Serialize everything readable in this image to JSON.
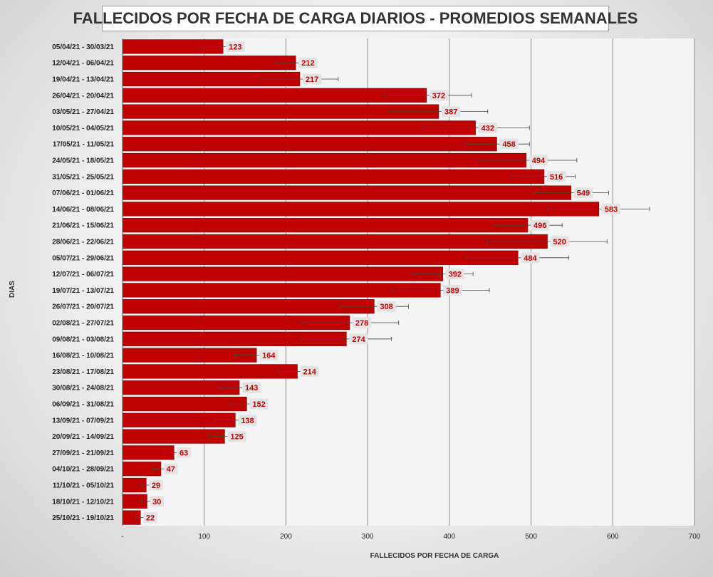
{
  "chart_data": {
    "type": "bar",
    "orientation": "horizontal",
    "title": "FALLECIDOS POR FECHA DE CARGA DIARIOS - PROMEDIOS SEMANALES",
    "xlabel": "FALLECIDOS POR FECHA DE CARGA",
    "ylabel": "DIAS",
    "xlim": [
      0,
      700
    ],
    "x_ticks": [
      "-",
      "100",
      "200",
      "300",
      "400",
      "500",
      "600",
      "700"
    ],
    "x_tick_values": [
      0,
      100,
      200,
      300,
      400,
      500,
      600,
      700
    ],
    "grid": "vertical",
    "colors": {
      "bar": "#c00000",
      "bar_edge": "#7a0000",
      "label_bg": "#e3e3e3",
      "plot_bg": "#f4f4f4",
      "grid": "#8c8c8c"
    },
    "categories": [
      "05/04/21 - 30/03/21",
      "12/04/21 - 06/04/21",
      "19/04/21 - 13/04/21",
      "26/04/21 - 20/04/21",
      "03/05/21 - 27/04/21",
      "10/05/21 - 04/05/21",
      "17/05/21 - 11/05/21",
      "24/05/21 - 18/05/21",
      "31/05/21 - 25/05/21",
      "07/06/21 - 01/06/21",
      "14/06/21 - 08/06/21",
      "21/06/21 - 15/06/21",
      "28/06/21 - 22/06/21",
      "05/07/21 - 29/06/21",
      "12/07/21 - 06/07/21",
      "19/07/21 - 13/07/21",
      "26/07/21 - 20/07/21",
      "02/08/21 - 27/07/21",
      "09/08/21 - 03/08/21",
      "16/08/21 - 10/08/21",
      "23/08/21 - 17/08/21",
      "30/08/21 - 24/08/21",
      "06/09/21 - 31/08/21",
      "13/09/21 - 07/09/21",
      "20/09/21 - 14/09/21",
      "27/09/21 - 21/09/21",
      "04/10/21 - 28/09/21",
      "11/10/21 - 05/10/21",
      "18/10/21 - 12/10/21",
      "25/10/21 - 19/10/21"
    ],
    "values": [
      123,
      212,
      217,
      372,
      387,
      432,
      458,
      494,
      516,
      549,
      583,
      496,
      520,
      484,
      392,
      389,
      308,
      278,
      274,
      164,
      214,
      143,
      152,
      138,
      125,
      63,
      47,
      29,
      30,
      22
    ],
    "error_low": [
      97,
      187,
      168,
      319,
      326,
      367,
      418,
      432,
      477,
      503,
      520,
      454,
      447,
      421,
      355,
      329,
      266,
      218,
      219,
      138,
      190,
      118,
      131,
      113,
      105,
      50,
      37,
      22,
      22,
      17
    ],
    "error_high": [
      148,
      236,
      264,
      427,
      447,
      498,
      498,
      556,
      554,
      595,
      645,
      538,
      593,
      546,
      429,
      449,
      350,
      338,
      329,
      189,
      238,
      167,
      173,
      162,
      145,
      75,
      57,
      36,
      37,
      27
    ]
  }
}
